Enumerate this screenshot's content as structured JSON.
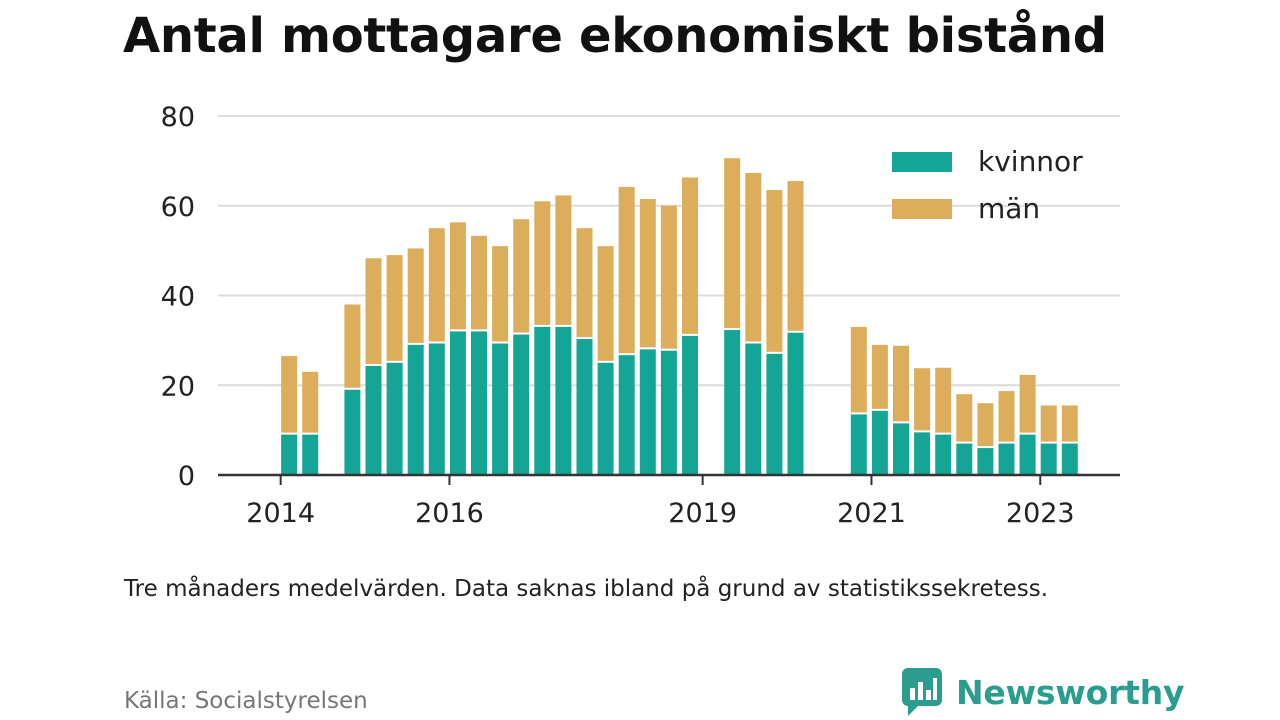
{
  "title": "Antal mottagare ekonomiskt bistånd",
  "caption": "Tre månaders medelvärden. Data saknas ibland på grund av statistikssekretess.",
  "source": "Källa: Socialstyrelsen",
  "brand": {
    "name": "Newsworthy",
    "icon": "newsworthy-logo-icon",
    "color": "#2a9d8f"
  },
  "chart_data": {
    "type": "bar",
    "stacked": true,
    "x_ticks": [
      "2014",
      "2016",
      "2019",
      "2021",
      "2023"
    ],
    "ylim": [
      0,
      80
    ],
    "y_ticks": [
      0,
      20,
      40,
      60,
      80
    ],
    "grid": true,
    "legend_position": "top-right",
    "series": [
      {
        "name": "kvinnor",
        "color": "#14a596"
      },
      {
        "name": "män",
        "color": "#dcae5b"
      }
    ],
    "periods": [
      {
        "kvinnor": null,
        "man": null
      },
      {
        "kvinnor": 9,
        "man": 17.5
      },
      {
        "kvinnor": 9,
        "man": 14
      },
      {
        "kvinnor": null,
        "man": null
      },
      {
        "kvinnor": 19,
        "man": 19
      },
      {
        "kvinnor": 24.3,
        "man": 24
      },
      {
        "kvinnor": 25,
        "man": 24
      },
      {
        "kvinnor": 29,
        "man": 21.5
      },
      {
        "kvinnor": 29.3,
        "man": 25.7
      },
      {
        "kvinnor": 32,
        "man": 24.3
      },
      {
        "kvinnor": 32,
        "man": 21.3
      },
      {
        "kvinnor": 29.3,
        "man": 21.7
      },
      {
        "kvinnor": 31.3,
        "man": 25.7
      },
      {
        "kvinnor": 33,
        "man": 28
      },
      {
        "kvinnor": 33,
        "man": 29.3
      },
      {
        "kvinnor": 30.3,
        "man": 24.7
      },
      {
        "kvinnor": 25,
        "man": 26
      },
      {
        "kvinnor": 26.7,
        "man": 37.5
      },
      {
        "kvinnor": 28,
        "man": 33.5
      },
      {
        "kvinnor": 27.7,
        "man": 32.3
      },
      {
        "kvinnor": 31,
        "man": 35.3
      },
      {
        "kvinnor": null,
        "man": null
      },
      {
        "kvinnor": 32.3,
        "man": 38.3
      },
      {
        "kvinnor": 29.3,
        "man": 38
      },
      {
        "kvinnor": 27,
        "man": 36.5
      },
      {
        "kvinnor": 31.7,
        "man": 33.8
      },
      {
        "kvinnor": null,
        "man": null
      },
      {
        "kvinnor": null,
        "man": null
      },
      {
        "kvinnor": 13.5,
        "man": 19.5
      },
      {
        "kvinnor": 14.3,
        "man": 14.7
      },
      {
        "kvinnor": 11.5,
        "man": 17.3
      },
      {
        "kvinnor": 9.5,
        "man": 14.3
      },
      {
        "kvinnor": 9,
        "man": 14.9
      },
      {
        "kvinnor": 7,
        "man": 11
      },
      {
        "kvinnor": 6,
        "man": 10
      },
      {
        "kvinnor": 7,
        "man": 11.7
      },
      {
        "kvinnor": 9,
        "man": 13.3
      },
      {
        "kvinnor": 7,
        "man": 8.5
      },
      {
        "kvinnor": 7,
        "man": 8.5
      }
    ],
    "tick_period_index": {
      "2014": 0.6,
      "2016": 8.6,
      "2019": 20.6,
      "2021": 28.6,
      "2023": 36.6
    }
  }
}
